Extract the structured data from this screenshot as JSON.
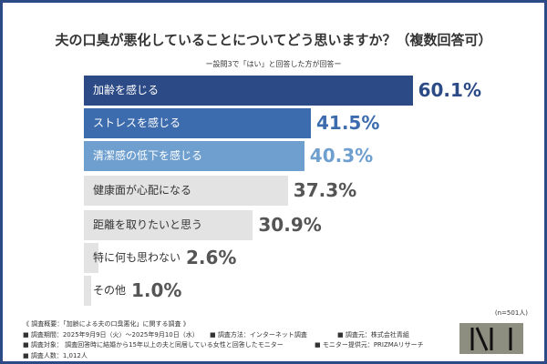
{
  "chart_data": {
    "type": "bar",
    "orientation": "horizontal",
    "title": "夫の口臭が悪化していることについてどう思いますか？（複数回答可）",
    "subtitle": "ー設問3で「はい」と回答した方が回答ー",
    "categories": [
      "加齢を感じる",
      "ストレスを感じる",
      "清潔感の低下を感じる",
      "健康面が心配になる",
      "距離を取りたいと思う",
      "特に何も思わない",
      "その他"
    ],
    "values": [
      60.1,
      41.5,
      40.3,
      37.3,
      30.9,
      2.6,
      1.0
    ],
    "value_labels": [
      "60.1%",
      "41.5%",
      "40.3%",
      "37.3%",
      "30.9%",
      "2.6%",
      "1.0%"
    ],
    "bar_colors": [
      "#2c4a86",
      "#3d6cae",
      "#6e9fcf",
      "#e3e3e3",
      "#e3e3e3",
      "#e3e3e3",
      "#e3e3e3"
    ],
    "label_colors": [
      "#ffffff",
      "#ffffff",
      "#ffffff",
      "#333333",
      "#333333",
      "#333333",
      "#333333"
    ],
    "value_colors": [
      "#2c4a86",
      "#3d6cae",
      "#6e9fcf",
      "#555555",
      "#555555",
      "#555555",
      "#555555"
    ],
    "n_label": "(n=501人)"
  },
  "notes": {
    "overview": "《 調査概要：「加齢による夫の口臭悪化」に関する調査 》",
    "period": "■ 調査期間：2025年9月9日（火）〜2025年9月10日（水）",
    "method": "■ 調査方法：インターネット調査",
    "source": "■ 調査元：株式会社青組",
    "target": "■ 調査対象： 調査回答時に結婚から15年以上の夫と同居している女性と回答したモニター",
    "provider": "■ モニター提供元：PRIZMAリサーチ",
    "count": "■ 調査人数：1,012人"
  },
  "logo": {
    "text": "NI"
  }
}
